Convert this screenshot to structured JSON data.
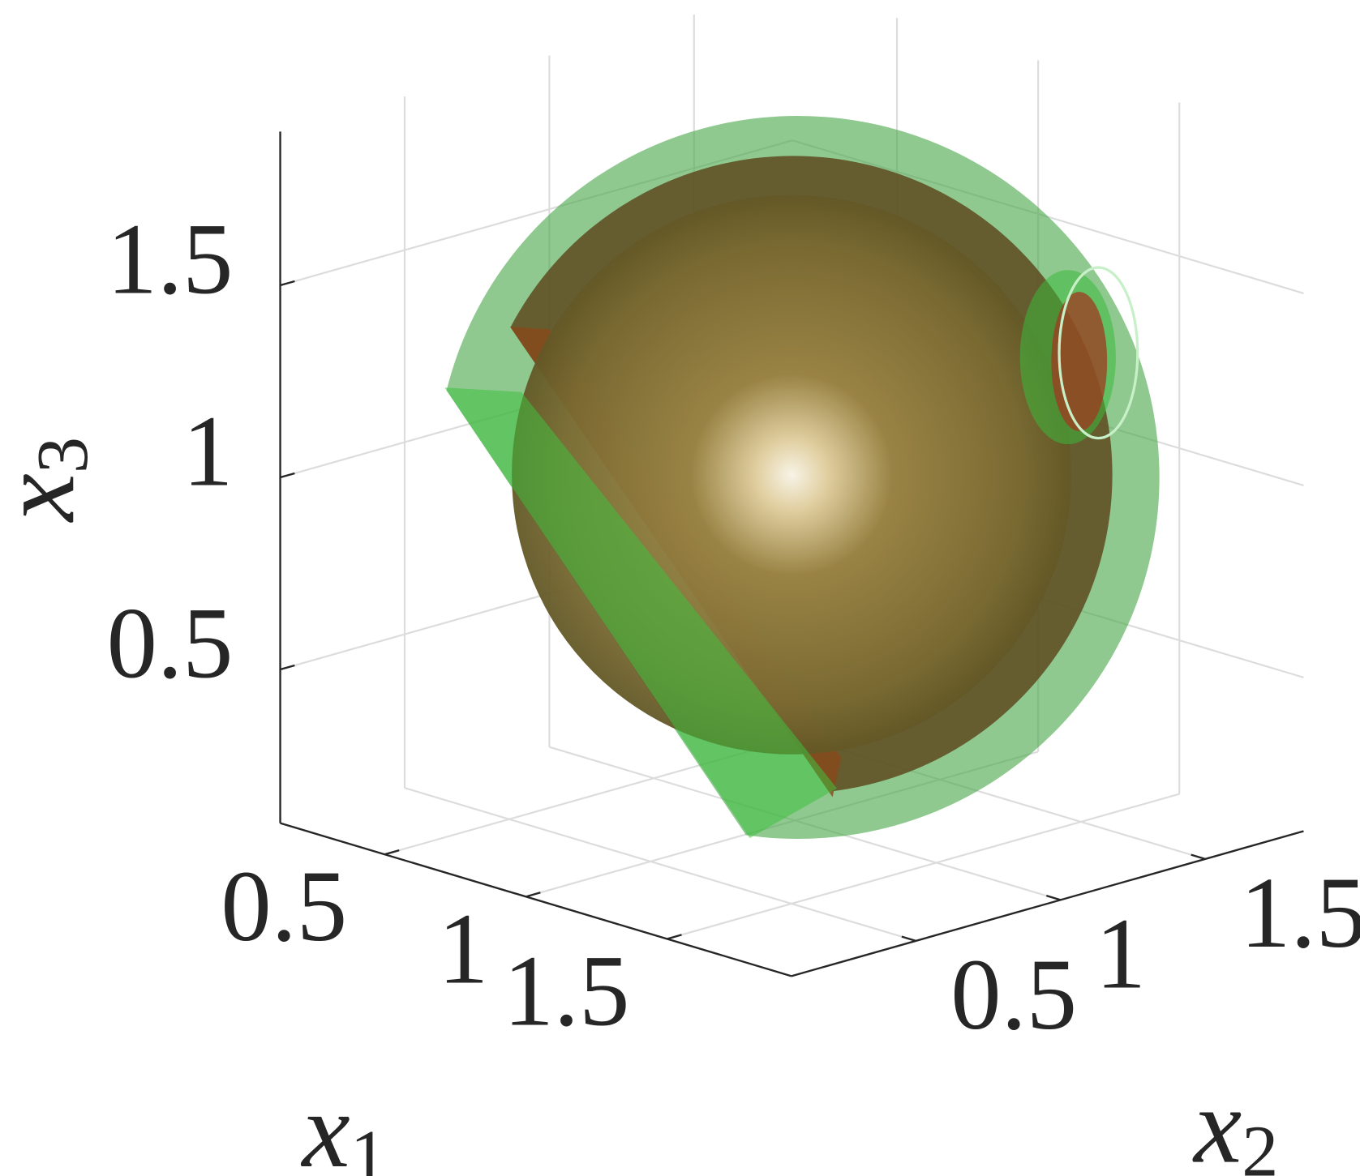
{
  "chart_data": {
    "type": "surface3d",
    "xlabel": {
      "symbol": "x",
      "subscript": "1"
    },
    "ylabel": {
      "symbol": "x",
      "subscript": "2"
    },
    "zlabel": {
      "symbol": "x",
      "subscript": "3"
    },
    "xlim": [
      0.13,
      1.94
    ],
    "ylim": [
      0.07,
      1.84
    ],
    "zlim": [
      0.1,
      1.9
    ],
    "xticks": [
      0.5,
      1,
      1.5
    ],
    "yticks": [
      0.5,
      1,
      1.5
    ],
    "zticks": [
      0.5,
      1,
      1.5
    ],
    "grid": true
  }
}
